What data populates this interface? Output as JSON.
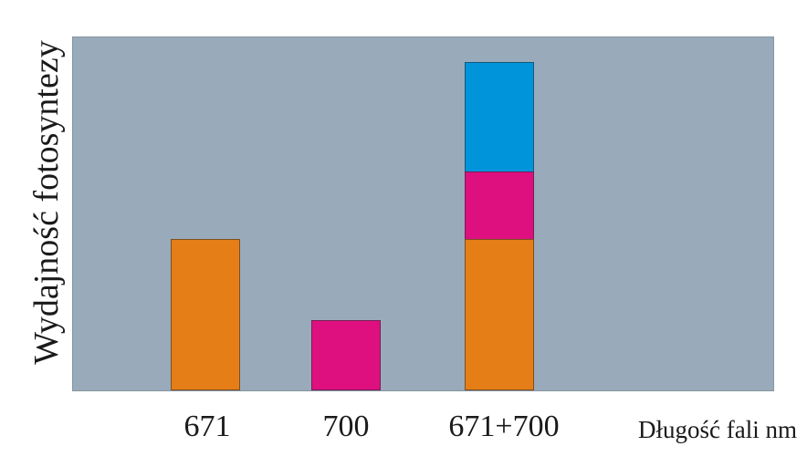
{
  "page": {
    "background": "#ffffff",
    "text_color": "#1a1a1a"
  },
  "chart_data": {
    "type": "bar",
    "subtype": "stacked",
    "title": "",
    "xlabel": "Długość fali nm",
    "ylabel": "Wydajność fotosyntezy",
    "categories": [
      "671",
      "700",
      "671+700"
    ],
    "series": [
      {
        "name": "orange-segment",
        "color": "#e67e17",
        "values": [
          0.43,
          0,
          0.43
        ]
      },
      {
        "name": "magenta-segment",
        "color": "#de1080",
        "values": [
          0,
          0.2,
          0.19
        ]
      },
      {
        "name": "blue-segment",
        "color": "#0095da",
        "values": [
          0,
          0,
          0.31
        ]
      }
    ],
    "ylim": [
      0,
      1
    ],
    "y_ticks": [],
    "grid": false,
    "legend": false,
    "plot_background": "#99aabb",
    "plot_border_color": "#8695a2",
    "bar_outline_color": "rgba(35,40,45,0.55)"
  }
}
